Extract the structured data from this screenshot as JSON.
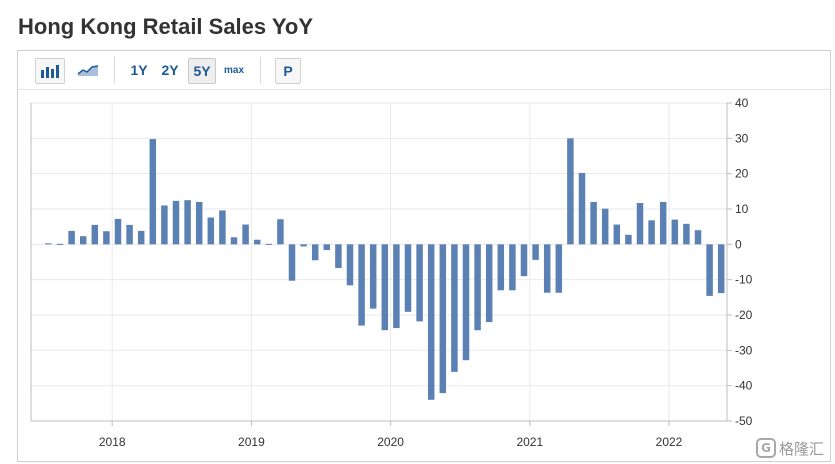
{
  "page": {
    "title": "Hong Kong Retail Sales YoY"
  },
  "toolbar": {
    "bar_chart_icon": "bar-chart-icon",
    "line_chart_icon": "line-chart-icon",
    "range_1y": "1Y",
    "range_2y": "2Y",
    "range_5y": "5Y",
    "range_max": "max",
    "p_label": "P",
    "active_range": "5Y"
  },
  "colors": {
    "bar": "#5b80b4",
    "grid": "#e9e9e9",
    "axis": "#bdbdbd",
    "link": "#1f5a96"
  },
  "watermark": {
    "logo_glyph": "G",
    "text": "格隆汇"
  },
  "chart_data": {
    "type": "bar",
    "title": "Hong Kong Retail Sales YoY",
    "xlabel": "",
    "ylabel": "",
    "ylim": [
      -50,
      40
    ],
    "yticks": [
      40,
      30,
      20,
      10,
      0,
      -10,
      -20,
      -30,
      -40,
      -50
    ],
    "y_axis_side": "right",
    "xlim": [
      "2017-06",
      "2022-05"
    ],
    "xticks": [
      {
        "label": "2018",
        "month": "2018-01"
      },
      {
        "label": "2019",
        "month": "2019-01"
      },
      {
        "label": "2020",
        "month": "2020-01"
      },
      {
        "label": "2021",
        "month": "2021-01"
      },
      {
        "label": "2022",
        "month": "2022-01"
      }
    ],
    "grid": true,
    "legend": "none",
    "categories": [
      "2017-07",
      "2017-08",
      "2017-09",
      "2017-10",
      "2017-11",
      "2017-12",
      "2018-01",
      "2018-02",
      "2018-03",
      "2018-04",
      "2018-05",
      "2018-06",
      "2018-07",
      "2018-08",
      "2018-09",
      "2018-10",
      "2018-11",
      "2018-12",
      "2019-01",
      "2019-02",
      "2019-03",
      "2019-04",
      "2019-05",
      "2019-06",
      "2019-07",
      "2019-08",
      "2019-09",
      "2019-10",
      "2019-11",
      "2019-12",
      "2020-01",
      "2020-02",
      "2020-03",
      "2020-04",
      "2020-05",
      "2020-06",
      "2020-07",
      "2020-08",
      "2020-09",
      "2020-10",
      "2020-11",
      "2020-12",
      "2021-01",
      "2021-02",
      "2021-03",
      "2021-04",
      "2021-05",
      "2021-06",
      "2021-07",
      "2021-08",
      "2021-09",
      "2021-10",
      "2021-11",
      "2021-12",
      "2022-01",
      "2022-02",
      "2022-03",
      "2022-04",
      "2022-05"
    ],
    "values": [
      0.3,
      0.0,
      3.8,
      2.3,
      5.5,
      3.7,
      7.2,
      5.5,
      3.8,
      29.8,
      11.0,
      12.3,
      12.5,
      12.0,
      7.6,
      9.6,
      2.0,
      5.6,
      1.3,
      0.0,
      7.1,
      -10.3,
      -0.6,
      -4.5,
      -1.6,
      -6.7,
      -11.6,
      -23.0,
      -18.2,
      -24.3,
      -23.7,
      -19.1,
      -21.8,
      -44.0,
      -42.1,
      -36.1,
      -32.8,
      -24.3,
      -22.0,
      -13.0,
      -13.0,
      -9.0,
      -4.4,
      -13.7,
      -13.7,
      30.0,
      20.2,
      12.0,
      10.1,
      5.6,
      2.7,
      11.7,
      6.8,
      12.0,
      7.0,
      5.8,
      4.0,
      -14.6,
      -13.8
    ]
  }
}
